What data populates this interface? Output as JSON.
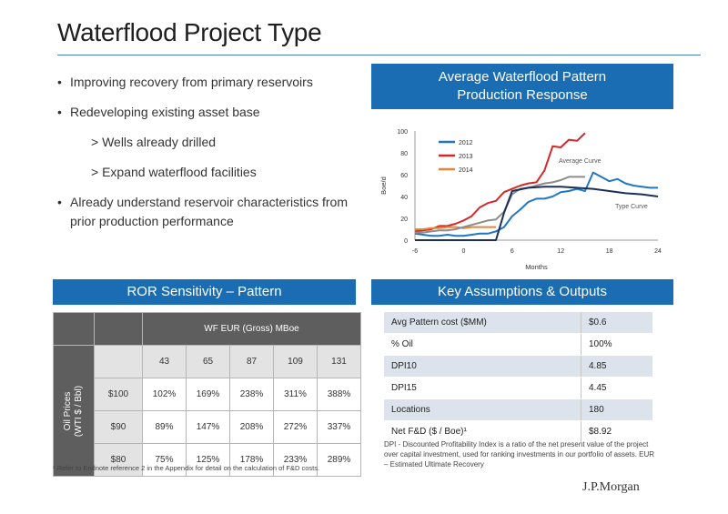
{
  "title": "Waterflood Project Type",
  "bullets": {
    "b1": "Improving recovery from primary reservoirs",
    "b2": "Redeveloping existing asset base",
    "s1": "> Wells already drilled",
    "s2": "> Expand waterflood facilities",
    "b3": "Already understand reservoir characteristics from prior production performance"
  },
  "chart_header": {
    "line1": "Average Waterflood Pattern",
    "line2": "Production Response"
  },
  "chart_data": {
    "type": "line",
    "title": "",
    "xlabel": "Months",
    "ylabel": "Boe/d",
    "xlim": [
      -6,
      24
    ],
    "ylim": [
      0,
      100
    ],
    "xticks": [
      -6,
      0,
      6,
      12,
      18,
      24
    ],
    "yticks": [
      0,
      20,
      40,
      60,
      80,
      100
    ],
    "grid": false,
    "legend_position": "top-left",
    "annotations": [
      "Average Curve",
      "Type Curve"
    ],
    "series": [
      {
        "name": "2012",
        "color": "#1f77c4",
        "x": [
          -6,
          -5,
          -4,
          -3,
          -2,
          -1,
          0,
          1,
          2,
          3,
          4,
          5,
          6,
          7,
          8,
          9,
          10,
          11,
          12,
          13,
          14,
          15,
          16,
          17,
          18,
          19,
          20,
          21,
          22,
          23,
          24
        ],
        "y": [
          6,
          5,
          4,
          4,
          5,
          4,
          4,
          5,
          6,
          6,
          8,
          12,
          22,
          28,
          35,
          38,
          38,
          40,
          44,
          45,
          47,
          45,
          62,
          58,
          54,
          56,
          52,
          50,
          49,
          48,
          48
        ]
      },
      {
        "name": "2013",
        "color": "#d62728",
        "x": [
          -6,
          -5,
          -4,
          -3,
          -2,
          -1,
          0,
          1,
          2,
          3,
          4,
          5,
          6,
          7,
          8,
          9,
          10,
          11,
          12,
          13,
          14,
          15
        ],
        "y": [
          8,
          9,
          10,
          13,
          13,
          15,
          18,
          22,
          30,
          34,
          36,
          44,
          47,
          50,
          52,
          53,
          64,
          86,
          85,
          92,
          91,
          98
        ]
      },
      {
        "name": "2014",
        "color": "#e8833a",
        "x": [
          -6,
          -5,
          -4,
          -3,
          -2,
          -1,
          0,
          1,
          2,
          3,
          4
        ],
        "y": [
          10,
          10,
          11,
          11,
          12,
          12,
          11,
          12,
          12,
          12,
          12
        ]
      },
      {
        "name": "",
        "color": "#8c8c8c",
        "x": [
          -6,
          -5,
          -4,
          -3,
          -2,
          -1,
          0,
          1,
          2,
          3,
          4,
          5,
          6,
          7,
          8,
          9,
          10,
          11,
          12,
          13,
          14,
          15
        ],
        "y": [
          7,
          7,
          8,
          9,
          9,
          10,
          12,
          14,
          16,
          18,
          19,
          26,
          42,
          47,
          48,
          50,
          52,
          53,
          55,
          58,
          58,
          58
        ]
      },
      {
        "name": "",
        "color": "#1a2f5a",
        "x": [
          -6,
          4,
          4,
          5,
          6,
          8,
          10,
          12,
          14,
          16,
          18,
          20,
          22,
          24
        ],
        "y": [
          0,
          0,
          0,
          25,
          45,
          48,
          49,
          49,
          48,
          47,
          45,
          43,
          42,
          40
        ]
      }
    ]
  },
  "ror": {
    "header": "ROR Sensitivity – Pattern",
    "eur_header": "WF EUR (Gross) MBoe",
    "oil_label_1": "Oil Prices",
    "oil_label_2": "(WTI $ / Bbl)",
    "eur_values": [
      "43",
      "65",
      "87",
      "109",
      "131"
    ],
    "rows": [
      {
        "price": "$100",
        "cells": [
          "102%",
          "169%",
          "238%",
          "311%",
          "388%"
        ]
      },
      {
        "price": "$90",
        "cells": [
          "89%",
          "147%",
          "208%",
          "272%",
          "337%"
        ]
      },
      {
        "price": "$80",
        "cells": [
          "75%",
          "125%",
          "178%",
          "233%",
          "289%"
        ]
      }
    ]
  },
  "footnote": "¹ Refer to Endnote reference 2 in the Appendix for detail on the calculation of F&D costs.",
  "key": {
    "header": "Key Assumptions & Outputs",
    "rows": [
      {
        "label": "Avg Pattern cost ($MM)",
        "value": "$0.6"
      },
      {
        "label": "% Oil",
        "value": "100%"
      },
      {
        "label": "DPI10",
        "value": "4.85"
      },
      {
        "label": "DPI15",
        "value": "4.45"
      },
      {
        "label": "Locations",
        "value": "180"
      },
      {
        "label": "Net F&D ($ / Boe)¹",
        "value": "$8.92"
      }
    ],
    "note": "DPI - Discounted Profitability Index is a ratio of the net present value of the project over capital investment, used for ranking investments in our portfolio of assets.  EUR – Estimated Ultimate Recovery"
  },
  "logo": "J.P.Morgan"
}
